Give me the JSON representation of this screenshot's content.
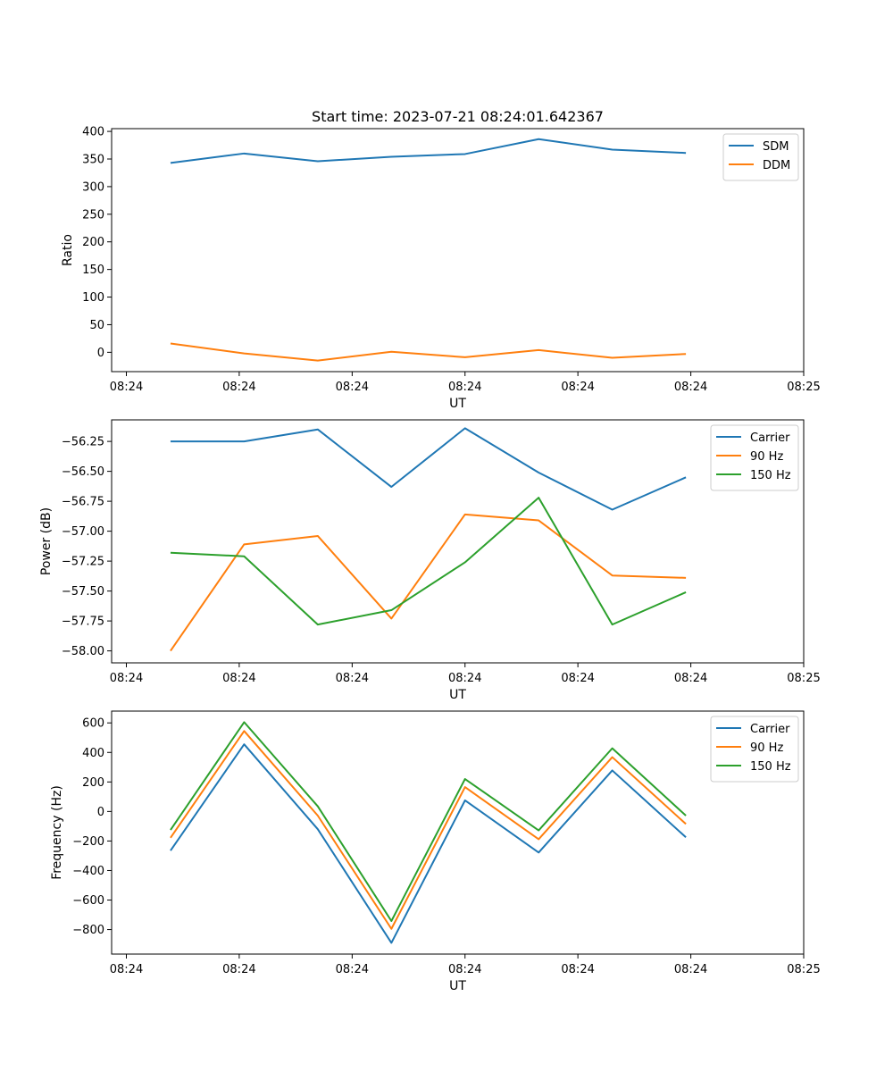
{
  "chart_data": [
    {
      "type": "line",
      "title": "Start time: 2023-07-21 08:24:01.642367",
      "xlabel": "UT",
      "ylabel": "Ratio",
      "x": [
        1,
        2,
        3,
        4,
        5,
        6,
        7,
        8
      ],
      "xlim": [
        0.2,
        9.6
      ],
      "x_ticks": [
        0.4,
        1.933,
        3.467,
        5,
        6.533,
        8.067,
        9.6
      ],
      "x_tick_labels": [
        "08:24",
        "08:24",
        "08:24",
        "08:24",
        "08:24",
        "08:24",
        "08:25"
      ],
      "ylim": [
        -35,
        405
      ],
      "y_ticks": [
        0,
        50,
        100,
        150,
        200,
        250,
        300,
        350,
        400
      ],
      "y_tick_labels": [
        "0",
        "50",
        "100",
        "150",
        "200",
        "250",
        "300",
        "350",
        "400"
      ],
      "legend": "top-right",
      "series": [
        {
          "name": "SDM",
          "color": "#1f77b4",
          "values": [
            343,
            360,
            346,
            354,
            359,
            386,
            367,
            361
          ]
        },
        {
          "name": "DDM",
          "color": "#ff7f0e",
          "values": [
            16,
            -2,
            -15,
            1,
            -9,
            4,
            -10,
            -3
          ]
        }
      ]
    },
    {
      "type": "line",
      "title": "",
      "xlabel": "UT",
      "ylabel": "Power (dB)",
      "x": [
        1,
        2,
        3,
        4,
        5,
        6,
        7,
        8
      ],
      "xlim": [
        0.2,
        9.6
      ],
      "x_ticks": [
        0.4,
        1.933,
        3.467,
        5,
        6.533,
        8.067,
        9.6
      ],
      "x_tick_labels": [
        "08:24",
        "08:24",
        "08:24",
        "08:24",
        "08:24",
        "08:24",
        "08:25"
      ],
      "ylim": [
        -58.1,
        -56.07
      ],
      "y_ticks": [
        -58.0,
        -57.75,
        -57.5,
        -57.25,
        -57.0,
        -56.75,
        -56.5,
        -56.25
      ],
      "y_tick_labels": [
        "−58.00",
        "−57.75",
        "−57.50",
        "−57.25",
        "−57.00",
        "−56.75",
        "−56.50",
        "−56.25"
      ],
      "legend": "top-right",
      "series": [
        {
          "name": "Carrier",
          "color": "#1f77b4",
          "values": [
            -56.25,
            -56.25,
            -56.15,
            -56.63,
            -56.14,
            -56.51,
            -56.82,
            -56.55
          ]
        },
        {
          "name": "90 Hz",
          "color": "#ff7f0e",
          "values": [
            -58.0,
            -57.11,
            -57.04,
            -57.73,
            -56.86,
            -56.91,
            -57.37,
            -57.39
          ]
        },
        {
          "name": "150 Hz",
          "color": "#2ca02c",
          "values": [
            -57.18,
            -57.21,
            -57.78,
            -57.66,
            -57.26,
            -56.72,
            -57.78,
            -57.51
          ]
        }
      ]
    },
    {
      "type": "line",
      "title": "",
      "xlabel": "UT",
      "ylabel": "Frequency (Hz)",
      "x": [
        1,
        2,
        3,
        4,
        5,
        6,
        7,
        8
      ],
      "xlim": [
        0.2,
        9.6
      ],
      "x_ticks": [
        0.4,
        1.933,
        3.467,
        5,
        6.533,
        8.067,
        9.6
      ],
      "x_tick_labels": [
        "08:24",
        "08:24",
        "08:24",
        "08:24",
        "08:24",
        "08:24",
        "08:25"
      ],
      "ylim": [
        -966,
        680
      ],
      "y_ticks": [
        -800,
        -600,
        -400,
        -200,
        0,
        200,
        400,
        600
      ],
      "y_tick_labels": [
        "−800",
        "−600",
        "−400",
        "−200",
        "0",
        "200",
        "400",
        "600"
      ],
      "legend": "top-right",
      "series": [
        {
          "name": "Carrier",
          "color": "#1f77b4",
          "values": [
            -265,
            455,
            -120,
            -890,
            75,
            -278,
            278,
            -175
          ]
        },
        {
          "name": "90 Hz",
          "color": "#ff7f0e",
          "values": [
            -178,
            545,
            -28,
            -795,
            165,
            -188,
            368,
            -85
          ]
        },
        {
          "name": "150 Hz",
          "color": "#2ca02c",
          "values": [
            -125,
            605,
            35,
            -742,
            220,
            -128,
            428,
            -28
          ]
        }
      ]
    }
  ]
}
